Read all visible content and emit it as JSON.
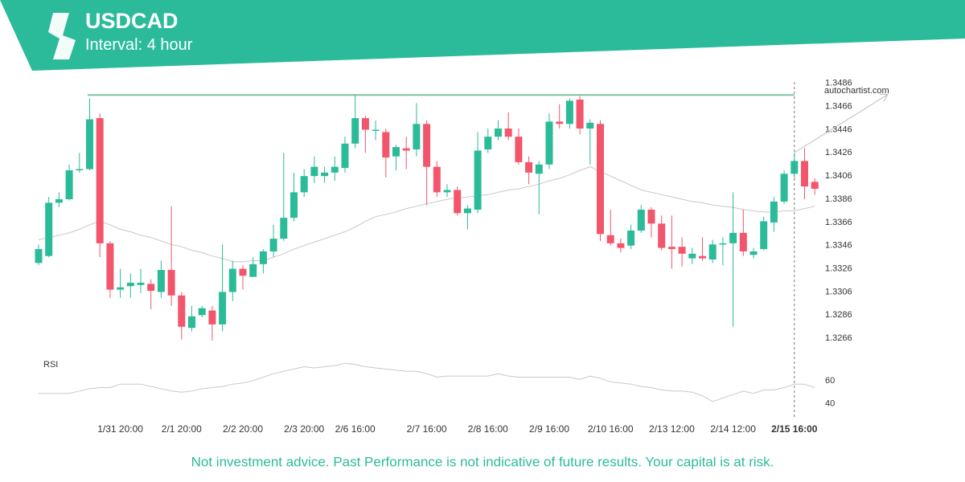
{
  "header": {
    "symbol": "USDCAD",
    "interval": "Interval: 4 hour"
  },
  "chart_data": {
    "type": "candlestick",
    "categories": [
      null,
      null,
      null,
      null,
      null,
      null,
      null,
      null,
      "1/31 20:00",
      null,
      null,
      null,
      null,
      null,
      "2/1 20:00",
      null,
      null,
      null,
      null,
      null,
      "2/2 20:00",
      null,
      null,
      null,
      null,
      null,
      "2/3 20:00",
      null,
      null,
      null,
      null,
      "2/6 16:00",
      null,
      null,
      null,
      null,
      null,
      null,
      "2/7 16:00",
      null,
      null,
      null,
      null,
      null,
      "2/8 16:00",
      null,
      null,
      null,
      null,
      null,
      "2/9 16:00",
      null,
      null,
      null,
      null,
      null,
      "2/10 16:00",
      null,
      null,
      null,
      null,
      null,
      "2/13 12:00",
      null,
      null,
      null,
      null,
      null,
      "2/14 12:00",
      null,
      null,
      null,
      null,
      null,
      "2/15 16:00",
      null,
      null
    ],
    "open": [
      1.3331,
      1.3337,
      1.3383,
      1.3386,
      1.3411,
      1.3412,
      1.3456,
      1.3348,
      1.3308,
      1.3311,
      1.3312,
      1.3313,
      1.3306,
      1.3325,
      1.3303,
      1.3275,
      1.3286,
      1.329,
      1.3278,
      1.3306,
      1.3326,
      1.3319,
      1.333,
      1.3341,
      1.3352,
      1.337,
      1.3392,
      1.3406,
      1.3406,
      1.3409,
      1.3413,
      1.3434,
      1.3456,
      1.3445,
      1.3444,
      1.3423,
      1.343,
      1.3429,
      1.3451,
      1.3414,
      1.3392,
      1.3394,
      1.3374,
      1.3377,
      1.3429,
      1.344,
      1.3447,
      1.344,
      1.3418,
      1.3408,
      1.3416,
      1.3453,
      1.3451,
      1.3472,
      1.3447,
      1.3451,
      1.3355,
      1.3348,
      1.3346,
      1.3359,
      1.3377,
      1.3365,
      1.3345,
      1.3345,
      1.3335,
      1.3337,
      1.3334,
      1.3347,
      1.3348,
      1.3357,
      1.3338,
      1.3343,
      1.3366,
      1.3384,
      1.3408,
      1.3419,
      1.3401
    ],
    "high": [
      1.3347,
      1.3388,
      1.3392,
      1.3416,
      1.3426,
      1.3473,
      1.346,
      1.335,
      1.3326,
      1.3322,
      1.3326,
      1.3317,
      1.3333,
      1.338,
      1.3306,
      1.3294,
      1.3294,
      1.3294,
      1.3347,
      1.3333,
      1.3329,
      1.3336,
      1.3343,
      1.3364,
      1.3426,
      1.3409,
      1.3412,
      1.3423,
      1.3414,
      1.3423,
      1.344,
      1.3476,
      1.3458,
      1.3454,
      1.3447,
      1.3433,
      1.344,
      1.3469,
      1.3454,
      1.3419,
      1.3399,
      1.3397,
      1.3381,
      1.3444,
      1.3447,
      1.3454,
      1.3461,
      1.3447,
      1.3423,
      1.3419,
      1.346,
      1.3468,
      1.3473,
      1.3475,
      1.3455,
      1.3454,
      1.3377,
      1.3352,
      1.3364,
      1.3381,
      1.3379,
      1.3372,
      1.3372,
      1.3353,
      1.3344,
      1.3353,
      1.3351,
      1.3353,
      1.3392,
      1.3377,
      1.3344,
      1.3371,
      1.3388,
      1.3411,
      1.3426,
      1.343,
      1.3404
    ],
    "low": [
      1.3329,
      1.3336,
      1.3379,
      1.3385,
      1.3409,
      1.3411,
      1.3336,
      1.3301,
      1.3301,
      1.3301,
      1.3305,
      1.3291,
      1.3301,
      1.3294,
      1.3265,
      1.3272,
      1.3284,
      1.3264,
      1.3272,
      1.3298,
      1.3308,
      1.3319,
      1.3322,
      1.3336,
      1.335,
      1.3367,
      1.3388,
      1.34,
      1.34,
      1.3402,
      1.3409,
      1.343,
      1.3426,
      1.3437,
      1.3405,
      1.3411,
      1.3412,
      1.3423,
      1.3381,
      1.3388,
      1.3388,
      1.3372,
      1.336,
      1.3374,
      1.3426,
      1.3437,
      1.3437,
      1.3416,
      1.3399,
      1.3373,
      1.3412,
      1.3447,
      1.3447,
      1.3442,
      1.3416,
      1.335,
      1.3346,
      1.334,
      1.3343,
      1.3357,
      1.3353,
      1.3342,
      1.3326,
      1.3328,
      1.333,
      1.3333,
      1.3331,
      1.3329,
      1.3276,
      1.3337,
      1.3335,
      1.3342,
      1.3358,
      1.3382,
      1.3404,
      1.3386,
      1.339
    ],
    "close": [
      1.3343,
      1.3383,
      1.3386,
      1.3411,
      1.3412,
      1.3455,
      1.3348,
      1.3308,
      1.331,
      1.3314,
      1.3314,
      1.3307,
      1.3325,
      1.3303,
      1.3276,
      1.3285,
      1.3292,
      1.3278,
      1.3306,
      1.3326,
      1.332,
      1.333,
      1.3341,
      1.3352,
      1.337,
      1.3392,
      1.3406,
      1.3414,
      1.3409,
      1.3414,
      1.3434,
      1.3456,
      1.3446,
      1.3446,
      1.3422,
      1.3431,
      1.3428,
      1.3451,
      1.3414,
      1.3392,
      1.3394,
      1.3374,
      1.3378,
      1.3428,
      1.344,
      1.3447,
      1.344,
      1.3418,
      1.3409,
      1.3416,
      1.3453,
      1.3451,
      1.3471,
      1.3447,
      1.3452,
      1.3356,
      1.3348,
      1.3344,
      1.3359,
      1.3377,
      1.3365,
      1.3344,
      1.3343,
      1.3339,
      1.3339,
      1.3335,
      1.3347,
      1.3348,
      1.3357,
      1.3341,
      1.3341,
      1.3367,
      1.3384,
      1.3408,
      1.3419,
      1.3397,
      1.3395
    ],
    "up_color": "#2bbb98",
    "down_color": "#f2566c",
    "moving_average": {
      "color": "#c8c8c8",
      "values": [
        1.3351,
        1.3353,
        1.3355,
        1.3357,
        1.336,
        1.3364,
        1.3367,
        1.3364,
        1.336,
        1.3358,
        1.3355,
        1.3353,
        1.335,
        1.3347,
        1.3345,
        1.3342,
        1.334,
        1.3337,
        1.3335,
        1.3332,
        1.3332,
        1.3333,
        1.3333,
        1.3336,
        1.3339,
        1.3343,
        1.3346,
        1.3349,
        1.3352,
        1.3355,
        1.3358,
        1.3362,
        1.3367,
        1.3371,
        1.3373,
        1.3375,
        1.3378,
        1.338,
        1.3382,
        1.3384,
        1.3386,
        1.3387,
        1.3388,
        1.3389,
        1.339,
        1.3392,
        1.3394,
        1.3395,
        1.3397,
        1.3399,
        1.3402,
        1.3404,
        1.3407,
        1.3411,
        1.3414,
        1.341,
        1.3406,
        1.3402,
        1.3398,
        1.3394,
        1.3392,
        1.339,
        1.3388,
        1.3386,
        1.3384,
        1.3383,
        1.3381,
        1.338,
        1.3379,
        1.3377,
        1.3376,
        1.3375,
        1.3375,
        1.3376,
        1.3376,
        1.3378,
        1.338
      ]
    },
    "resistance": {
      "value": 1.3476,
      "color": "#7cc49e"
    },
    "ylim": [
      1.3246,
      1.349
    ],
    "yticks": [
      1.3486,
      1.3466,
      1.3446,
      1.3426,
      1.3406,
      1.3386,
      1.3366,
      1.3346,
      1.3326,
      1.3306,
      1.3286,
      1.3266
    ],
    "watermark": "autochartist.com",
    "rsi": {
      "label": "RSI",
      "color": "#c8c8c8",
      "values": [
        49,
        49,
        49,
        49,
        51,
        53,
        54,
        54,
        57,
        57,
        57,
        55,
        53,
        51,
        50,
        51,
        53,
        54,
        55,
        57,
        58,
        60,
        63,
        66,
        68,
        70,
        72,
        71,
        72,
        73,
        75,
        74,
        72,
        71,
        70,
        69,
        68,
        68,
        66,
        63,
        64,
        64,
        64,
        64,
        64,
        66,
        64,
        63,
        63,
        63,
        63,
        63,
        63,
        61,
        64,
        62,
        59,
        58,
        57,
        55,
        54,
        52,
        51,
        51,
        50,
        47,
        42,
        45,
        48,
        51,
        49,
        52,
        52,
        54,
        57,
        57,
        54
      ],
      "ylim": [
        28,
        80
      ],
      "yticks": [
        60,
        40
      ]
    }
  },
  "footer": "Not investment advice. Past Performance is not indicative of future results. Your capital is at risk."
}
